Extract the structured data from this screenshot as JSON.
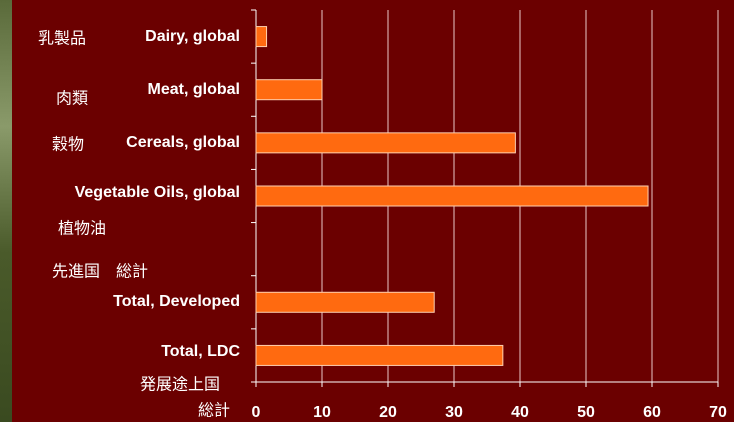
{
  "chart_data": {
    "type": "bar",
    "orientation": "horizontal",
    "categories": [
      "Dairy, global",
      "Meat, global",
      "Cereals, global",
      "Vegetable Oils, global",
      null,
      "Total, Developed",
      "Total, LDC"
    ],
    "category_labels_ja": [
      [
        "乳製品"
      ],
      [
        "肉類"
      ],
      [
        "穀物"
      ],
      [
        "植物油"
      ],
      [],
      [
        "先進国　総計"
      ],
      [
        "発展途上国",
        "総計"
      ]
    ],
    "values": [
      1.6,
      10,
      39.3,
      59.4,
      null,
      27,
      37.4
    ],
    "color": "#ff6a10",
    "xlim": [
      0,
      70
    ],
    "xticks": [
      0,
      10,
      20,
      30,
      40,
      50,
      60,
      70
    ],
    "grid": true
  }
}
